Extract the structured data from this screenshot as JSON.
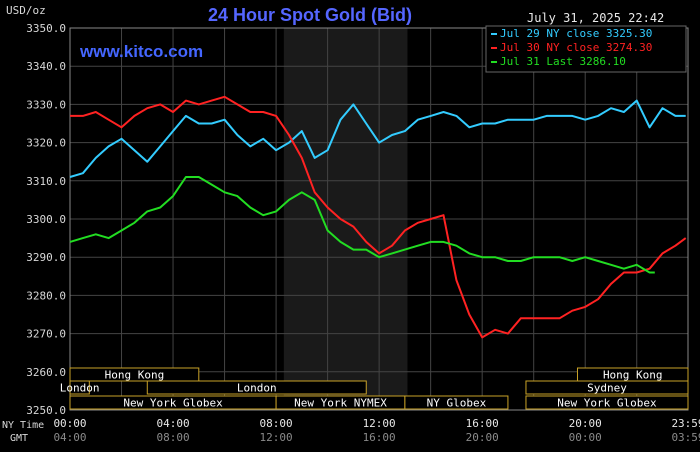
{
  "chart_data": {
    "type": "line",
    "title": "24 Hour Spot Gold (Bid)",
    "website": "www.kitco.com",
    "ylabel": "USD/oz",
    "datetime": "July 31, 2025 22:42",
    "ylim": [
      3250,
      3350
    ],
    "yticks": [
      "3350.0",
      "3340.0",
      "3330.0",
      "3320.0",
      "3310.0",
      "3300.0",
      "3290.0",
      "3280.0",
      "3270.0",
      "3260.0",
      "3250.0"
    ],
    "x_label_ny": "NY Time",
    "x_label_gmt": "GMT",
    "xticks_ny": [
      "00:00",
      "04:00",
      "08:00",
      "12:00",
      "16:00",
      "20:00",
      "23:59"
    ],
    "xticks_gmt": [
      "04:00",
      "08:00",
      "12:00",
      "16:00",
      "20:00",
      "00:00",
      "03:59"
    ],
    "shade_hours": [
      8.3,
      13.1
    ],
    "colors": {
      "bg": "#000000",
      "grid": "#444444",
      "title": "#5566ff",
      "site": "#4466ff",
      "axis_text": "#d8d8d8",
      "shade": "#1a1a1a",
      "session": "#c9a227"
    },
    "series": [
      {
        "name": "Jul 29 NY close 3325.30",
        "color": "#33ccff",
        "x": [
          0,
          0.5,
          1,
          1.5,
          2,
          2.5,
          3,
          3.5,
          4,
          4.5,
          5,
          5.5,
          6,
          6.5,
          7,
          7.5,
          8,
          8.5,
          9,
          9.5,
          10,
          10.5,
          11,
          11.5,
          12,
          12.5,
          13,
          13.5,
          14,
          14.5,
          15,
          15.5,
          16,
          16.5,
          17,
          17.5,
          18,
          18.5,
          19,
          19.5,
          20,
          20.5,
          21,
          21.5,
          22,
          22.5,
          23,
          23.5,
          23.9
        ],
        "values": [
          3311,
          3312,
          3316,
          3319,
          3321,
          3318,
          3315,
          3319,
          3323,
          3327,
          3325,
          3325,
          3326,
          3322,
          3319,
          3321,
          3318,
          3320,
          3323,
          3316,
          3318,
          3326,
          3330,
          3325,
          3320,
          3322,
          3323,
          3326,
          3327,
          3328,
          3327,
          3324,
          3325,
          3325,
          3326,
          3326,
          3326,
          3327,
          3327,
          3327,
          3326,
          3327,
          3329,
          3328,
          3331,
          3324,
          3329,
          3327,
          3327
        ]
      },
      {
        "name": "Jul 30 NY close 3274.30",
        "color": "#ff2222",
        "x": [
          0,
          0.5,
          1,
          1.5,
          2,
          2.5,
          3,
          3.5,
          4,
          4.5,
          5,
          5.5,
          6,
          6.5,
          7,
          7.5,
          8,
          8.5,
          9,
          9.5,
          10,
          10.5,
          11,
          11.5,
          12,
          12.5,
          13,
          13.5,
          14,
          14.5,
          15,
          15.5,
          16,
          16.5,
          17,
          17.5,
          18,
          18.5,
          19,
          19.5,
          20,
          20.5,
          21,
          21.5,
          22,
          22.5,
          23,
          23.5,
          23.9
        ],
        "values": [
          3327,
          3327,
          3328,
          3326,
          3324,
          3327,
          3329,
          3330,
          3328,
          3331,
          3330,
          3331,
          3332,
          3330,
          3328,
          3328,
          3327,
          3322,
          3316,
          3307,
          3303,
          3300,
          3298,
          3294,
          3291,
          3293,
          3297,
          3299,
          3300,
          3301,
          3284,
          3275,
          3269,
          3271,
          3270,
          3274,
          3274,
          3274,
          3274,
          3276,
          3277,
          3279,
          3283,
          3286,
          3286,
          3287,
          3291,
          3293,
          3295
        ]
      },
      {
        "name": "Jul 31 Last 3286.10",
        "color": "#22dd22",
        "x": [
          0,
          0.5,
          1,
          1.5,
          2,
          2.5,
          3,
          3.5,
          4,
          4.5,
          5,
          5.5,
          6,
          6.5,
          7,
          7.5,
          8,
          8.5,
          9,
          9.5,
          10,
          10.5,
          11,
          11.5,
          12,
          12.5,
          13,
          13.5,
          14,
          14.5,
          15,
          15.5,
          16,
          16.5,
          17,
          17.5,
          18,
          18.5,
          19,
          19.5,
          20,
          20.5,
          21,
          21.5,
          22,
          22.5,
          22.7
        ],
        "values": [
          3294,
          3295,
          3296,
          3295,
          3297,
          3299,
          3302,
          3303,
          3306,
          3311,
          3311,
          3309,
          3307,
          3306,
          3303,
          3301,
          3302,
          3305,
          3307,
          3305,
          3297,
          3294,
          3292,
          3292,
          3290,
          3291,
          3292,
          3293,
          3294,
          3294,
          3293,
          3291,
          3290,
          3290,
          3289,
          3289,
          3290,
          3290,
          3290,
          3289,
          3290,
          3289,
          3288,
          3287,
          3288,
          3286,
          3286
        ]
      }
    ],
    "sessions": [
      {
        "label": "Hong Kong",
        "row": 0,
        "start": 0,
        "end": 5.0
      },
      {
        "label": "Hong Kong",
        "row": 0,
        "start": 19.7,
        "end": 23.99
      },
      {
        "label": "London",
        "row": 1,
        "start": 0,
        "end": 0.75
      },
      {
        "label": "London",
        "row": 1,
        "start": 3.0,
        "end": 11.5
      },
      {
        "label": "Sydney",
        "row": 1,
        "start": 17.7,
        "end": 23.99
      },
      {
        "label": "New York Globex",
        "row": 2,
        "start": 0,
        "end": 8.0
      },
      {
        "label": "New York NYMEX",
        "row": 2,
        "start": 8.0,
        "end": 13.0
      },
      {
        "label": "NY Globex",
        "row": 2,
        "start": 13.0,
        "end": 17.0
      },
      {
        "label": "New York Globex",
        "row": 2,
        "start": 17.7,
        "end": 23.99
      }
    ]
  }
}
